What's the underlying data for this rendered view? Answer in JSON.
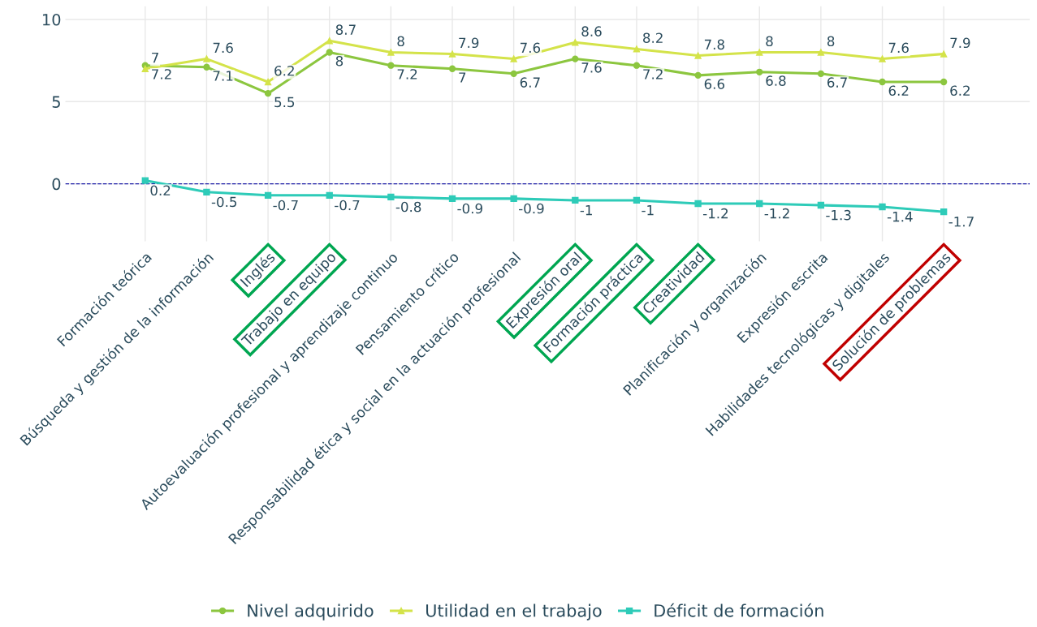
{
  "chart_data": {
    "type": "line",
    "categories": [
      "Formación teórica",
      "Búsqueda y gestión de la información",
      "Inglés",
      "Trabajo en equipo",
      "Autoevaluación profesional y aprendizaje continuo",
      "Pensamiento crítico",
      "Responsabilidad ética y social en la actuación profesional",
      "Expresión oral",
      "Formación práctica",
      "Creatividad",
      "Planificación y organización",
      "Expresión escrita",
      "Habilidades tecnológicas y digitales",
      "Solución de problemas"
    ],
    "colors": [
      null,
      null,
      "#00a651",
      "#00a651",
      null,
      null,
      null,
      "#00a651",
      "#00a651",
      "#00a651",
      null,
      null,
      null,
      "#c00000"
    ],
    "series": [
      {
        "name": "Nivel adquirido",
        "color": "#8cc63f",
        "marker": "circle",
        "values": [
          7.2,
          7.1,
          5.5,
          8,
          7.2,
          7,
          6.7,
          7.6,
          7.2,
          6.6,
          6.8,
          6.7,
          6.2,
          6.2
        ]
      },
      {
        "name": "Utilidad en el trabajo",
        "color": "#d4e34a",
        "marker": "triangle",
        "values": [
          7,
          7.6,
          6.2,
          8.7,
          8,
          7.9,
          7.6,
          8.6,
          8.2,
          7.8,
          8,
          8,
          7.6,
          7.9
        ]
      },
      {
        "name": "Déficit de formación",
        "color": "#2ecbb8",
        "marker": "square",
        "values": [
          0.2,
          -0.5,
          -0.7,
          -0.7,
          -0.8,
          -0.9,
          -0.9,
          -1,
          -1,
          -1.2,
          -1.2,
          -1.3,
          -1.4,
          -1.7
        ]
      }
    ],
    "ylim": [
      -3.5,
      10.8
    ],
    "yticks": [
      0,
      5,
      10
    ],
    "ref_lines": [
      {
        "axis": "y",
        "value": 0,
        "color": "#1a1aa6",
        "line_style": "dashed"
      }
    ],
    "grid": true,
    "legend": "bottom",
    "data_labels": true,
    "line_style": "solid"
  }
}
